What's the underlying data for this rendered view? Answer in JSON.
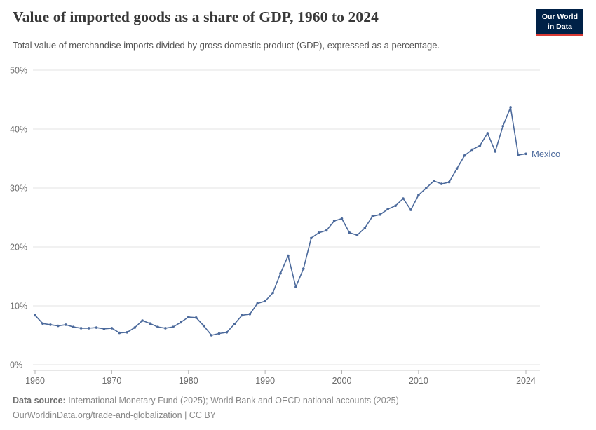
{
  "header": {
    "title": "Value of imported goods as a share of GDP, 1960 to 2024",
    "subtitle": "Total value of merchandise imports divided by gross domestic product (GDP), expressed as a percentage.",
    "logo": {
      "line1": "Our World",
      "line2": "in Data",
      "bg_color": "#002147",
      "accent_color": "#d93a34"
    }
  },
  "chart_data": {
    "type": "line",
    "title": "Value of imported goods as a share of GDP, 1960 to 2024",
    "xlabel": "",
    "ylabel": "",
    "xlim": [
      1960,
      2024
    ],
    "ylim": [
      0,
      50
    ],
    "yticks": [
      0,
      10,
      20,
      30,
      40,
      50
    ],
    "ytick_suffix": "%",
    "xticks": [
      1960,
      1970,
      1980,
      1990,
      2000,
      2010,
      2024
    ],
    "grid": true,
    "legend_position": "end-of-line",
    "grid_color": "#e3e3e3",
    "series": [
      {
        "name": "Mexico",
        "color": "#4c6a9c",
        "x": [
          1960,
          1961,
          1962,
          1963,
          1964,
          1965,
          1966,
          1967,
          1968,
          1969,
          1970,
          1971,
          1972,
          1973,
          1974,
          1975,
          1976,
          1977,
          1978,
          1979,
          1980,
          1981,
          1982,
          1983,
          1984,
          1985,
          1986,
          1987,
          1988,
          1989,
          1990,
          1991,
          1992,
          1993,
          1994,
          1995,
          1996,
          1997,
          1998,
          1999,
          2000,
          2001,
          2002,
          2003,
          2004,
          2005,
          2006,
          2007,
          2008,
          2009,
          2010,
          2011,
          2012,
          2013,
          2014,
          2015,
          2016,
          2017,
          2018,
          2019,
          2020,
          2021,
          2022,
          2023,
          2024
        ],
        "values": [
          8.4,
          7.0,
          6.8,
          6.6,
          6.8,
          6.4,
          6.2,
          6.2,
          6.3,
          6.1,
          6.2,
          5.4,
          5.5,
          6.3,
          7.5,
          7.0,
          6.4,
          6.2,
          6.4,
          7.2,
          8.1,
          8.0,
          6.6,
          5.0,
          5.3,
          5.5,
          6.9,
          8.4,
          8.6,
          10.4,
          10.8,
          12.2,
          15.5,
          18.5,
          13.2,
          16.3,
          21.5,
          22.4,
          22.8,
          24.4,
          24.8,
          22.4,
          22.0,
          23.2,
          25.2,
          25.5,
          26.4,
          27.0,
          28.2,
          26.3,
          28.8,
          30.0,
          31.2,
          30.7,
          31.0,
          33.3,
          35.5,
          36.5,
          37.2,
          39.3,
          36.2,
          40.5,
          43.7,
          35.6,
          35.8
        ]
      }
    ]
  },
  "footer": {
    "source_label": "Data source:",
    "source_text": "International Monetary Fund (2025); World Bank and OECD national accounts (2025)",
    "url": "OurWorldinData.org/trade-and-globalization",
    "separator": "|",
    "license": "CC BY"
  }
}
